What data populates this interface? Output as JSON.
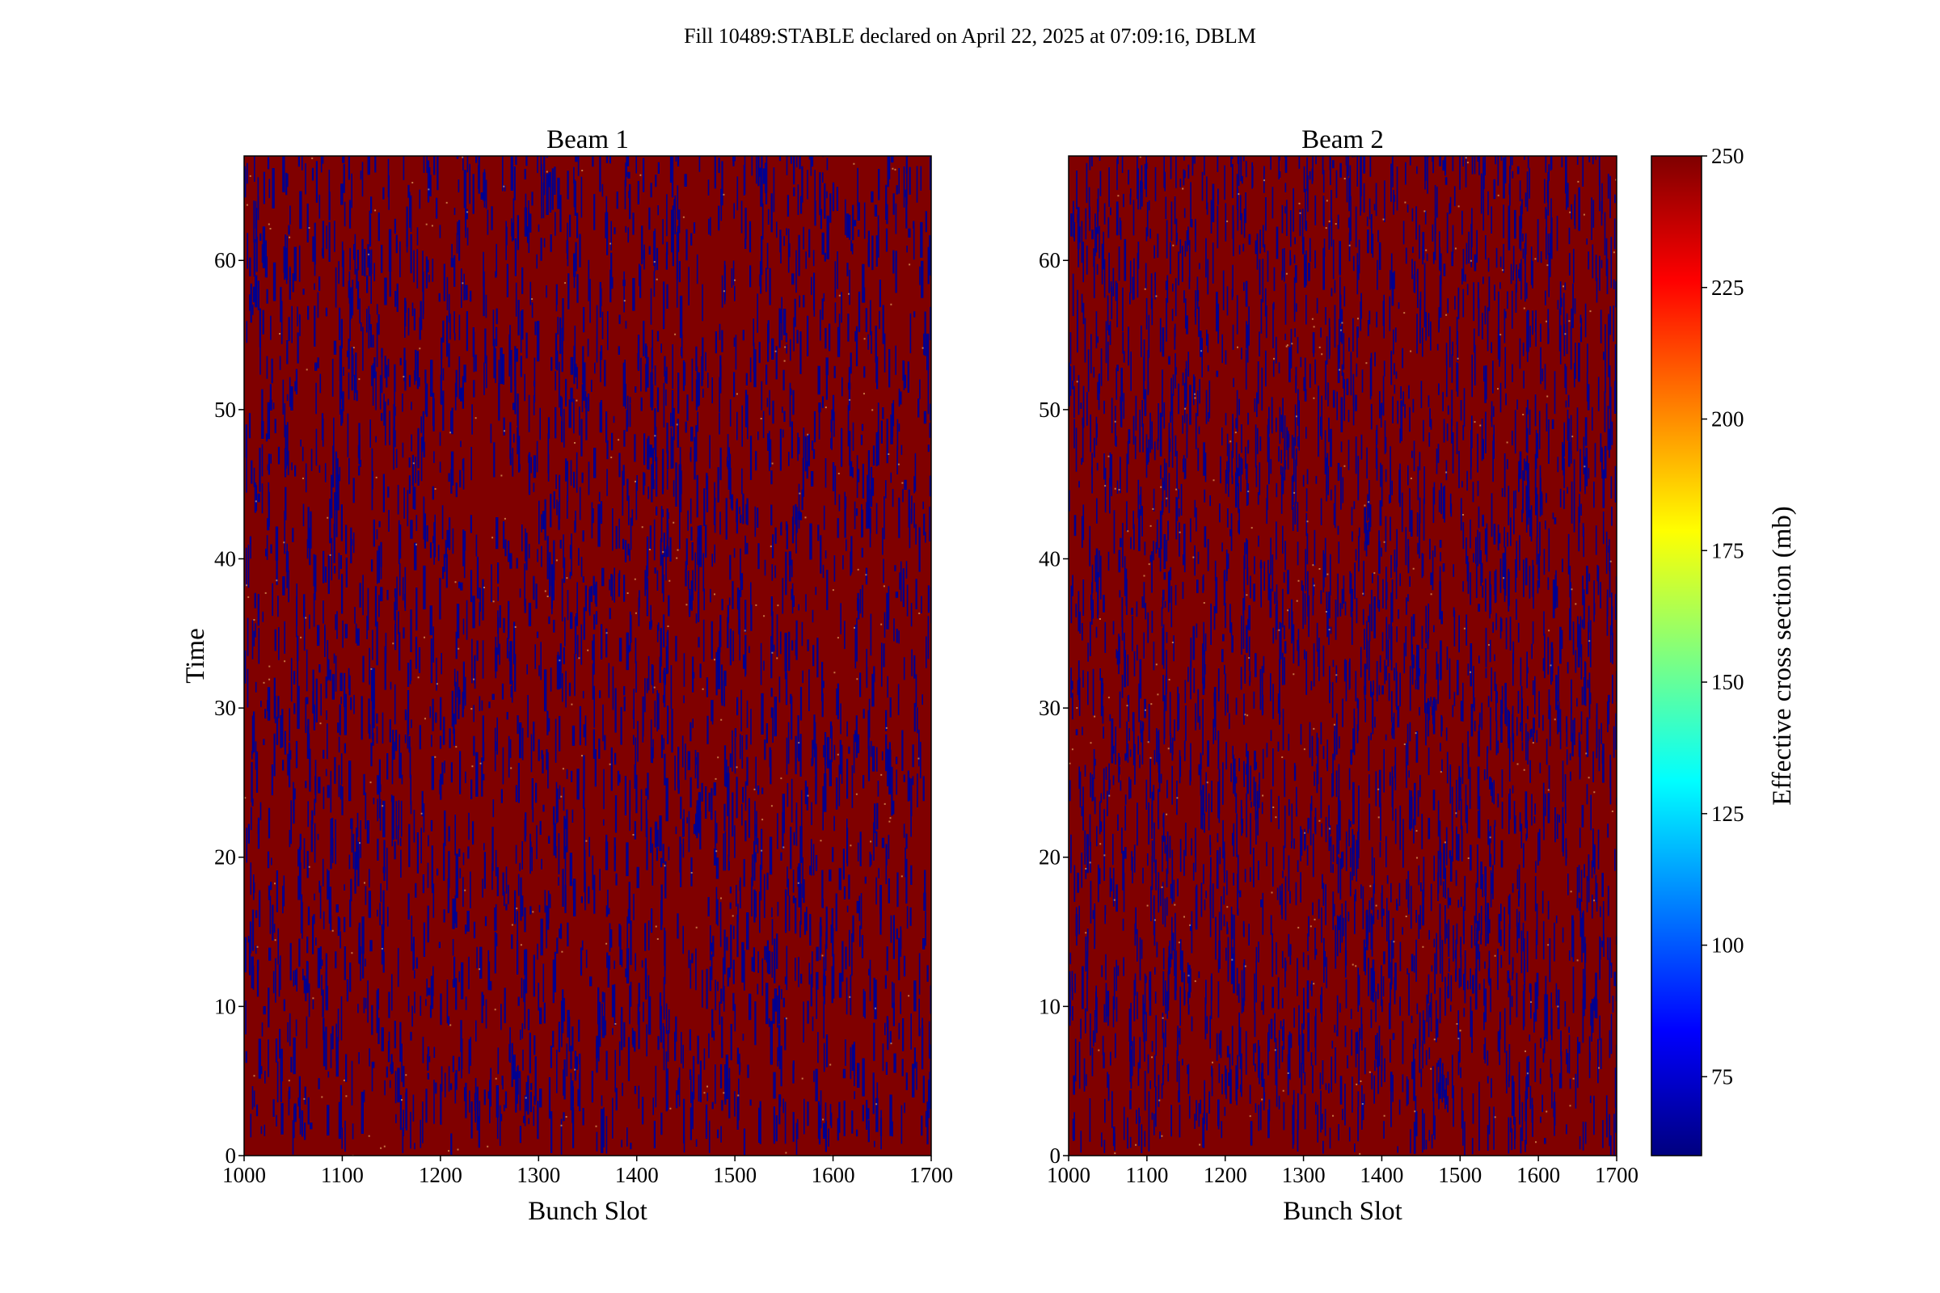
{
  "figure": {
    "suptitle": "Fill 10489:STABLE declared on April 22, 2025 at 07:09:16, DBLM"
  },
  "chart_data": [
    {
      "type": "heatmap",
      "title": "Beam 1",
      "xlabel": "Bunch Slot",
      "ylabel": "Time",
      "xlim": [
        1000,
        1700
      ],
      "ylim": [
        0,
        67
      ],
      "xticks": [
        1000,
        1100,
        1200,
        1300,
        1400,
        1500,
        1600,
        1700
      ],
      "yticks": [
        0,
        10,
        20,
        30,
        40,
        50,
        60
      ],
      "dominant_value": 250,
      "secondary_value": 60,
      "secondary_fraction": 0.22,
      "colormap": "jet"
    },
    {
      "type": "heatmap",
      "title": "Beam 2",
      "xlabel": "Bunch Slot",
      "ylabel": "",
      "xlim": [
        1000,
        1700
      ],
      "ylim": [
        0,
        67
      ],
      "xticks": [
        1000,
        1100,
        1200,
        1300,
        1400,
        1500,
        1600,
        1700
      ],
      "yticks": [
        0,
        10,
        20,
        30,
        40,
        50,
        60
      ],
      "dominant_value": 250,
      "secondary_value": 60,
      "secondary_fraction": 0.22,
      "colormap": "jet"
    }
  ],
  "colorbar": {
    "label": "Effective cross section (mb)",
    "vmin": 60,
    "vmax": 250,
    "ticks": [
      75,
      100,
      125,
      150,
      175,
      200,
      225,
      250
    ],
    "colors": {
      "dark_red": "#800000",
      "dark_blue": "#00008f",
      "stops": [
        "#00007f",
        "#0000ff",
        "#007fff",
        "#00ffff",
        "#7fff7f",
        "#ffff00",
        "#ff7f00",
        "#ff0000",
        "#7f0000"
      ]
    }
  }
}
